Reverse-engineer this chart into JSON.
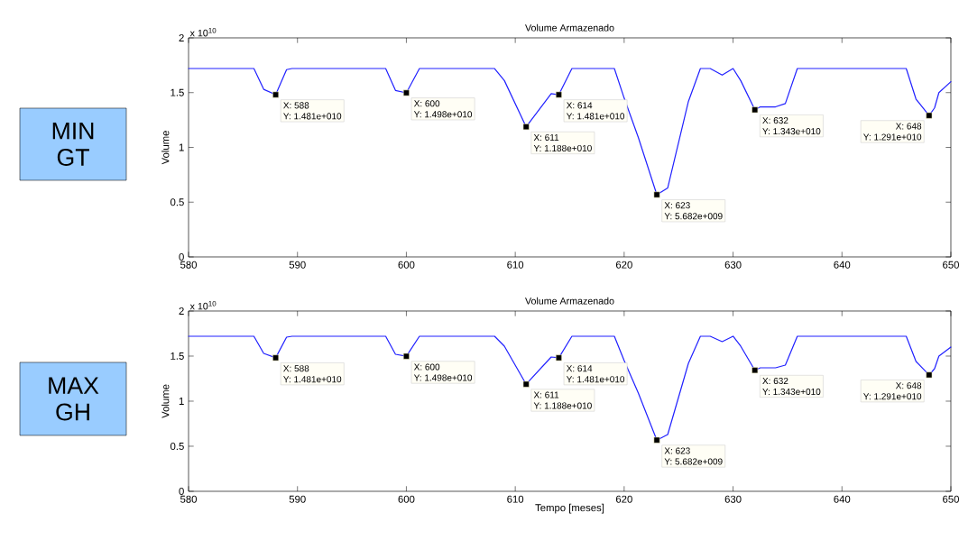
{
  "chart_data": [
    {
      "type": "line",
      "title": "Volume Armazenado",
      "ylabel": "Volume",
      "xlim": [
        580,
        650
      ],
      "xticks": [
        580,
        590,
        600,
        610,
        620,
        630,
        640,
        650
      ],
      "ylim": [
        0,
        2
      ],
      "yticks": [
        0,
        0.5,
        1,
        1.5,
        2
      ],
      "series": [
        {
          "color": "#2020ff",
          "x": [
            580,
            586,
            586.9,
            588,
            589,
            589.5,
            598.1,
            599,
            600,
            601.2,
            608.1,
            609,
            611,
            613.3,
            614,
            615.2,
            619.1,
            620,
            621.3,
            623,
            624,
            625.9,
            627,
            627.9,
            629,
            630,
            630.7,
            632,
            632.5,
            633.9,
            634.8,
            635.9,
            645.9,
            646.8,
            648,
            648.5,
            648.9,
            650
          ],
          "values": [
            1.72,
            1.72,
            1.53,
            1.481,
            1.71,
            1.72,
            1.72,
            1.52,
            1.498,
            1.72,
            1.72,
            1.61,
            1.188,
            1.49,
            1.481,
            1.72,
            1.72,
            1.45,
            1.09,
            0.5682,
            0.63,
            1.42,
            1.72,
            1.72,
            1.66,
            1.72,
            1.61,
            1.343,
            1.37,
            1.37,
            1.4,
            1.72,
            1.72,
            1.44,
            1.291,
            1.36,
            1.5,
            1.6
          ]
        },
        {
          "type": "scatter",
          "color": "#000000",
          "marker": "square",
          "x": [
            588,
            600,
            611,
            614,
            623,
            632,
            648
          ],
          "values": [
            1.481,
            1.498,
            1.188,
            1.481,
            0.5682,
            1.343,
            1.291
          ]
        }
      ],
      "annotations": [
        "x 10$^{10}$",
        "MIN GT",
        {
          "text": "X: 588",
          "x": 588,
          "y": 1.481
        },
        {
          "text": "Y: 1.481e+010",
          "x": 588,
          "y": 1.481
        },
        {
          "text": "X: 600",
          "x": 600,
          "y": 1.498
        },
        {
          "text": "Y: 1.498e+010",
          "x": 600,
          "y": 1.498
        },
        {
          "text": "X: 611",
          "x": 611,
          "y": 1.188
        },
        {
          "text": "Y: 1.188e+010",
          "x": 611,
          "y": 1.188
        },
        {
          "text": "X: 614",
          "x": 614,
          "y": 1.481
        },
        {
          "text": "Y: 1.481e+010",
          "x": 614,
          "y": 1.481
        },
        {
          "text": "X: 623",
          "x": 623,
          "y": 0.5682
        },
        {
          "text": "Y: 5.682e+009",
          "x": 623,
          "y": 0.5682
        },
        {
          "text": "X: 632",
          "x": 632,
          "y": 1.343
        },
        {
          "text": "Y: 1.343e+010",
          "x": 632,
          "y": 1.343
        },
        {
          "text": "X: 648",
          "x": 648,
          "y": 1.291
        },
        {
          "text": "Y: 1.291e+010",
          "x": 648,
          "y": 1.291
        }
      ]
    },
    {
      "type": "line",
      "title": "Volume Armazenado",
      "ylabel": "Volume",
      "xlabel": "Tempo [meses]",
      "xlim": [
        580,
        650
      ],
      "xticks": [
        580,
        590,
        600,
        610,
        620,
        630,
        640,
        650
      ],
      "ylim": [
        0,
        2
      ],
      "yticks": [
        0,
        0.5,
        1,
        1.5,
        2
      ],
      "series": [
        {
          "color": "#2020ff",
          "x": [
            580,
            586,
            586.9,
            588,
            589,
            589.5,
            598.1,
            599,
            600,
            601.2,
            608.1,
            609,
            611,
            613.3,
            614,
            615.2,
            619.1,
            620,
            621.3,
            623,
            624,
            625.9,
            627,
            627.9,
            629,
            630,
            630.7,
            632,
            632.5,
            633.9,
            634.8,
            635.9,
            645.9,
            646.8,
            648,
            648.5,
            648.9,
            650
          ],
          "values": [
            1.72,
            1.72,
            1.53,
            1.481,
            1.71,
            1.72,
            1.72,
            1.52,
            1.498,
            1.72,
            1.72,
            1.61,
            1.188,
            1.49,
            1.481,
            1.72,
            1.72,
            1.45,
            1.09,
            0.5682,
            0.63,
            1.42,
            1.72,
            1.72,
            1.66,
            1.72,
            1.61,
            1.343,
            1.37,
            1.37,
            1.4,
            1.72,
            1.72,
            1.44,
            1.291,
            1.36,
            1.5,
            1.6
          ]
        },
        {
          "type": "scatter",
          "color": "#000000",
          "marker": "square",
          "x": [
            588,
            600,
            611,
            614,
            623,
            632,
            648
          ],
          "values": [
            1.481,
            1.498,
            1.188,
            1.481,
            0.5682,
            1.343,
            1.291
          ]
        }
      ],
      "annotations": [
        "x 10$^{10}$",
        "MAX GH",
        {
          "text": "X: 588",
          "x": 588,
          "y": 1.481
        },
        {
          "text": "Y: 1.481e+010",
          "x": 588,
          "y": 1.481
        },
        {
          "text": "X: 600",
          "x": 600,
          "y": 1.498
        },
        {
          "text": "Y: 1.498e+010",
          "x": 600,
          "y": 1.498
        },
        {
          "text": "X: 611",
          "x": 611,
          "y": 1.188
        },
        {
          "text": "Y: 1.188e+010",
          "x": 611,
          "y": 1.188
        },
        {
          "text": "X: 614",
          "x": 614,
          "y": 1.481
        },
        {
          "text": "Y: 1.481e+010",
          "x": 614,
          "y": 1.481
        },
        {
          "text": "X: 623",
          "x": 623,
          "y": 0.5682
        },
        {
          "text": "Y: 5.682e+009",
          "x": 623,
          "y": 0.5682
        },
        {
          "text": "X: 632",
          "x": 632,
          "y": 1.343
        },
        {
          "text": "Y: 1.343e+010",
          "x": 632,
          "y": 1.343
        },
        {
          "text": "X: 648",
          "x": 648,
          "y": 1.291
        },
        {
          "text": "Y: 1.291e+010",
          "x": 648,
          "y": 1.291
        }
      ]
    }
  ]
}
